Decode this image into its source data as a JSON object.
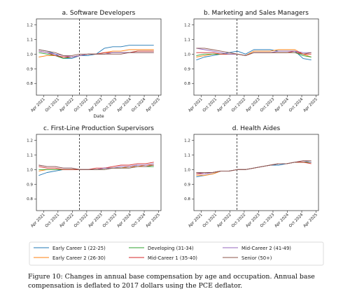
{
  "chart_data": [
    {
      "type": "line",
      "title": "a. Software Developers",
      "xlabel": "Date",
      "ylabel": "",
      "ylim": [
        0.72,
        1.24
      ],
      "yticks": [
        0.8,
        0.9,
        1.0,
        1.1,
        1.2
      ],
      "xticks": [
        "Apr 2021",
        "Oct 2021",
        "Apr 2022",
        "Oct 2022",
        "Apr 2023",
        "Oct 2023",
        "Apr 2024",
        "Oct 2024",
        "Apr 2025"
      ],
      "reference_line": "Jul 2022",
      "series": [
        {
          "name": "Early Career 1 (22-25)",
          "values": [
            1.03,
            1.02,
            1.0,
            0.97,
            0.97,
            0.99,
            0.99,
            1.0,
            1.04,
            1.05,
            1.05,
            1.06,
            1.06,
            1.06,
            1.06
          ]
        },
        {
          "name": "Early Career 2 (26-30)",
          "values": [
            0.98,
            0.99,
            0.99,
            0.98,
            0.98,
            0.99,
            1.0,
            1.0,
            1.01,
            1.02,
            1.02,
            1.03,
            1.03,
            1.03,
            1.03
          ]
        },
        {
          "name": "Developing (31-34)",
          "values": [
            1.01,
            1.0,
            0.99,
            0.97,
            0.98,
            0.99,
            1.0,
            1.0,
            1.0,
            1.01,
            1.01,
            1.01,
            1.02,
            1.02,
            1.02
          ]
        },
        {
          "name": "Mid-Career 1 (35-40)",
          "values": [
            1.02,
            1.01,
            0.99,
            0.98,
            0.98,
            0.99,
            1.0,
            1.0,
            1.01,
            1.01,
            1.01,
            1.01,
            1.02,
            1.02,
            1.02
          ]
        },
        {
          "name": "Mid-Career 2 (41-49)",
          "values": [
            1.02,
            1.01,
            1.0,
            0.99,
            0.98,
            0.99,
            1.0,
            1.0,
            1.0,
            1.01,
            1.01,
            1.01,
            1.01,
            1.01,
            1.01
          ]
        },
        {
          "name": "Senior (50+)",
          "values": [
            1.03,
            1.02,
            1.01,
            0.99,
            0.99,
            1.0,
            1.0,
            1.0,
            1.0,
            1.0,
            1.0,
            1.01,
            1.01,
            1.01,
            1.01
          ]
        }
      ]
    },
    {
      "type": "line",
      "title": "b. Marketing and Sales Managers",
      "xlabel": "",
      "ylabel": "",
      "ylim": [
        0.72,
        1.24
      ],
      "yticks": [
        0.8,
        0.9,
        1.0,
        1.1,
        1.2
      ],
      "xticks": [
        "Apr 2021",
        "Oct 2021",
        "Apr 2022",
        "Oct 2022",
        "Apr 2023",
        "Oct 2023",
        "Apr 2024",
        "Oct 2024",
        "Apr 2025"
      ],
      "reference_line": "Jul 2022",
      "series": [
        {
          "name": "Early Career 1 (22-25)",
          "values": [
            0.96,
            0.98,
            0.99,
            1.0,
            1.01,
            1.02,
            1.0,
            1.03,
            1.03,
            1.03,
            1.02,
            1.02,
            1.02,
            0.97,
            0.96
          ]
        },
        {
          "name": "Early Career 2 (26-30)",
          "values": [
            0.98,
            0.99,
            1.0,
            1.0,
            1.0,
            1.0,
            0.99,
            1.02,
            1.02,
            1.02,
            1.03,
            1.03,
            1.03,
            1.0,
            0.98
          ]
        },
        {
          "name": "Developing (31-34)",
          "values": [
            0.99,
            1.0,
            1.0,
            1.0,
            1.0,
            1.0,
            0.99,
            1.01,
            1.01,
            1.01,
            1.01,
            1.01,
            1.01,
            0.99,
            0.98
          ]
        },
        {
          "name": "Mid-Career 1 (35-40)",
          "values": [
            1.01,
            1.01,
            1.01,
            1.0,
            1.0,
            1.0,
            0.99,
            1.01,
            1.01,
            1.01,
            1.01,
            1.01,
            1.02,
            1.0,
            1.0
          ]
        },
        {
          "name": "Mid-Career 2 (41-49)",
          "values": [
            1.04,
            1.03,
            1.02,
            1.01,
            1.0,
            1.0,
            0.99,
            1.01,
            1.01,
            1.01,
            1.02,
            1.02,
            1.02,
            1.01,
            1.01
          ]
        },
        {
          "name": "Senior (50+)",
          "values": [
            1.04,
            1.04,
            1.03,
            1.02,
            1.01,
            1.0,
            0.99,
            1.01,
            1.01,
            1.01,
            1.01,
            1.01,
            1.01,
            1.0,
            1.01
          ]
        }
      ]
    },
    {
      "type": "line",
      "title": "c. First-Line Production Supervisors",
      "xlabel": "",
      "ylabel": "",
      "ylim": [
        0.72,
        1.24
      ],
      "yticks": [
        0.8,
        0.9,
        1.0,
        1.1,
        1.2
      ],
      "xticks": [
        "Apr 2021",
        "Oct 2021",
        "Apr 2022",
        "Oct 2022",
        "Apr 2023",
        "Oct 2023",
        "Apr 2024",
        "Oct 2024",
        "Apr 2025"
      ],
      "reference_line": "Jul 2022",
      "series": [
        {
          "name": "Early Career 1 (22-25)",
          "values": [
            0.96,
            0.98,
            0.99,
            1.0,
            1.0,
            1.0,
            1.0,
            1.0,
            1.01,
            1.01,
            1.01,
            1.02,
            1.03,
            1.03,
            1.03
          ]
        },
        {
          "name": "Early Career 2 (26-30)",
          "values": [
            0.99,
            1.0,
            1.0,
            1.0,
            1.0,
            1.0,
            1.0,
            1.0,
            1.01,
            1.01,
            1.01,
            1.02,
            1.02,
            1.03,
            1.03
          ]
        },
        {
          "name": "Developing (31-34)",
          "values": [
            1.0,
            1.0,
            1.0,
            1.0,
            1.0,
            1.0,
            1.0,
            1.0,
            1.0,
            1.01,
            1.01,
            1.01,
            1.02,
            1.02,
            1.02
          ]
        },
        {
          "name": "Mid-Career 1 (35-40)",
          "values": [
            1.02,
            1.01,
            1.01,
            1.0,
            1.0,
            1.0,
            1.0,
            1.01,
            1.01,
            1.02,
            1.03,
            1.03,
            1.04,
            1.04,
            1.05
          ]
        },
        {
          "name": "Mid-Career 2 (41-49)",
          "values": [
            1.03,
            1.02,
            1.02,
            1.01,
            1.01,
            1.0,
            1.0,
            1.0,
            1.01,
            1.01,
            1.02,
            1.02,
            1.03,
            1.03,
            1.04
          ]
        },
        {
          "name": "Senior (50+)",
          "values": [
            1.03,
            1.02,
            1.02,
            1.01,
            1.01,
            1.0,
            1.0,
            1.0,
            1.0,
            1.01,
            1.01,
            1.01,
            1.02,
            1.02,
            1.03
          ]
        }
      ]
    },
    {
      "type": "line",
      "title": "d. Health Aides",
      "xlabel": "",
      "ylabel": "",
      "ylim": [
        0.72,
        1.24
      ],
      "yticks": [
        0.8,
        0.9,
        1.0,
        1.1,
        1.2
      ],
      "xticks": [
        "Apr 2021",
        "Oct 2021",
        "Apr 2022",
        "Oct 2022",
        "Apr 2023",
        "Oct 2023",
        "Apr 2024",
        "Oct 2024",
        "Apr 2025"
      ],
      "reference_line": "Jul 2022",
      "series": [
        {
          "name": "Early Career 1 (22-25)",
          "values": [
            0.95,
            0.96,
            0.97,
            0.99,
            0.99,
            1.0,
            1.0,
            1.01,
            1.02,
            1.03,
            1.03,
            1.04,
            1.05,
            1.05,
            1.05
          ]
        },
        {
          "name": "Early Career 2 (26-30)",
          "values": [
            0.96,
            0.96,
            0.97,
            0.99,
            0.99,
            1.0,
            1.0,
            1.01,
            1.02,
            1.03,
            1.04,
            1.04,
            1.05,
            1.05,
            1.05
          ]
        },
        {
          "name": "Developing (31-34)",
          "values": [
            0.97,
            0.97,
            0.98,
            0.99,
            0.99,
            1.0,
            1.0,
            1.01,
            1.02,
            1.03,
            1.04,
            1.04,
            1.05,
            1.05,
            1.05
          ]
        },
        {
          "name": "Mid-Career 1 (35-40)",
          "values": [
            0.97,
            0.97,
            0.98,
            0.99,
            0.99,
            1.0,
            1.0,
            1.01,
            1.02,
            1.03,
            1.04,
            1.04,
            1.05,
            1.05,
            1.04
          ]
        },
        {
          "name": "Mid-Career 2 (41-49)",
          "values": [
            0.98,
            0.97,
            0.98,
            0.99,
            0.99,
            1.0,
            1.0,
            1.01,
            1.02,
            1.03,
            1.04,
            1.04,
            1.05,
            1.06,
            1.05
          ]
        },
        {
          "name": "Senior (50+)",
          "values": [
            0.98,
            0.98,
            0.98,
            0.99,
            0.99,
            1.0,
            1.0,
            1.01,
            1.02,
            1.03,
            1.04,
            1.04,
            1.05,
            1.06,
            1.06
          ]
        }
      ]
    }
  ],
  "legend": {
    "placement": "bottom",
    "entries": [
      {
        "label": "Early Career 1 (22-25)",
        "color": "#1f77b4"
      },
      {
        "label": "Early Career 2 (26-30)",
        "color": "#ff7f0e"
      },
      {
        "label": "Developing (31-34)",
        "color": "#2ca02c"
      },
      {
        "label": "Mid-Career 1 (35-40)",
        "color": "#d62728"
      },
      {
        "label": "Mid-Career 2 (41-49)",
        "color": "#9467bd"
      },
      {
        "label": "Senior (50+)",
        "color": "#8c564b"
      }
    ]
  },
  "caption": {
    "text": "Figure 10: Changes in annual base compensation by age and occupation. Annual base compensation is deflated to 2017 dollars using the PCE deflator."
  }
}
